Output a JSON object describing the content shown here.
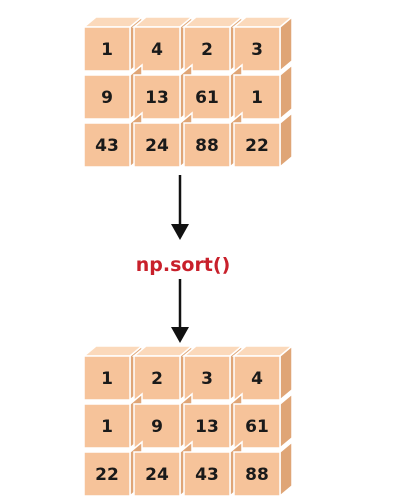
{
  "operation_label": "np.sort()",
  "colors": {
    "cube_front": "#f6c39a",
    "cube_top": "#fbd9bb",
    "cube_side": "#dfa576",
    "cube_edge": "#ffffff",
    "arrow": "#111111",
    "label": "#c8202b",
    "text": "#1a1a1a"
  },
  "input_array": {
    "rows": [
      [
        "1",
        "4",
        "2",
        "3"
      ],
      [
        "9",
        "13",
        "61",
        "1"
      ],
      [
        "43",
        "24",
        "88",
        "22"
      ]
    ]
  },
  "output_array": {
    "rows": [
      [
        "1",
        "2",
        "3",
        "4"
      ],
      [
        "1",
        "9",
        "13",
        "61"
      ],
      [
        "22",
        "24",
        "43",
        "88"
      ]
    ]
  }
}
